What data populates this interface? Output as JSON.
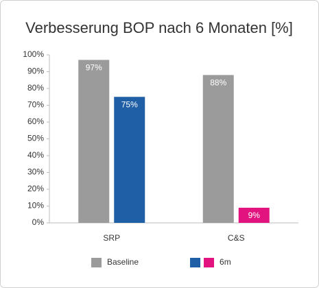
{
  "chart_data": {
    "type": "bar",
    "title": "Verbesserung BOP nach 6 Monaten [%]",
    "categories": [
      "SRP",
      "C&S"
    ],
    "series": [
      {
        "name": "Baseline",
        "color": "#9b9b9b",
        "values": [
          97,
          88
        ],
        "value_labels": [
          "97%",
          "88%"
        ]
      },
      {
        "name": "6m",
        "colors": [
          "#1f5fa6",
          "#e2137f"
        ],
        "values": [
          75,
          9
        ],
        "value_labels": [
          "75%",
          "9%"
        ]
      }
    ],
    "ylim": [
      0,
      100
    ],
    "yticks": [
      {
        "value": 0,
        "label": "0%"
      },
      {
        "value": 10,
        "label": "10%"
      },
      {
        "value": 20,
        "label": "20%"
      },
      {
        "value": 30,
        "label": "30%"
      },
      {
        "value": 40,
        "label": "40%"
      },
      {
        "value": 50,
        "label": "50%"
      },
      {
        "value": 60,
        "label": "60%"
      },
      {
        "value": 70,
        "label": "70%"
      },
      {
        "value": 80,
        "label": "80%"
      },
      {
        "value": 90,
        "label": "90%"
      },
      {
        "value": 100,
        "label": "100%"
      }
    ],
    "grid": false,
    "legend": "bottom"
  }
}
